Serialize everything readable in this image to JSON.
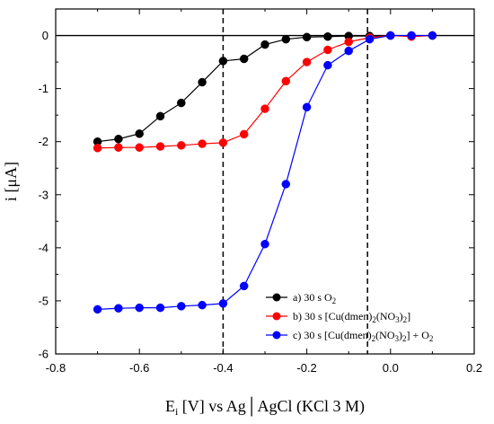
{
  "chart_data": {
    "type": "line",
    "title": "",
    "xlabel": "E_i [V] vs Ag|AgCl (KCl 3 M)",
    "xlabel_parts": {
      "main": "E",
      "sub": "i",
      "rest": " [V] vs Ag│AgCl (KCl 3 M)"
    },
    "ylabel": "i [μA]",
    "xlim": [
      -0.8,
      0.2
    ],
    "ylim": [
      -6,
      0.5
    ],
    "xticks": [
      -0.8,
      -0.6,
      -0.4,
      -0.2,
      0.0,
      0.2
    ],
    "xtick_labels": [
      "-0.8",
      "-0.6",
      "-0.4",
      "-0.2",
      "0.0",
      "0.2"
    ],
    "yticks": [
      0,
      -1,
      -2,
      -3,
      -4,
      -5,
      -6
    ],
    "ytick_labels": [
      "0",
      "-1",
      "-2",
      "-3",
      "-4",
      "-5",
      "-6"
    ],
    "grid": false,
    "legend_position": "bottom-right",
    "reference_lines": {
      "horizontal_y": 0,
      "vertical_dashed_x": [
        -0.4,
        -0.055
      ]
    },
    "series": [
      {
        "name": "a) 30 s  O2",
        "legend": {
          "prefix": "a) 30 s  O",
          "parts": [
            [
              "sub",
              "2"
            ]
          ]
        },
        "color": "#000000",
        "x": [
          -0.7,
          -0.65,
          -0.6,
          -0.55,
          -0.5,
          -0.45,
          -0.4,
          -0.35,
          -0.3,
          -0.25,
          -0.2,
          -0.15,
          -0.1,
          -0.05,
          0.0,
          0.05,
          0.1
        ],
        "y": [
          -2.0,
          -1.95,
          -1.85,
          -1.52,
          -1.27,
          -0.88,
          -0.48,
          -0.44,
          -0.17,
          -0.07,
          -0.03,
          -0.02,
          -0.01,
          -0.01,
          0.0,
          0.0,
          0.0
        ]
      },
      {
        "name": "b) 30 s [Cu(dmen)2(NO3)2]",
        "legend": {
          "prefix": "b) 30 s [Cu(dmen)",
          "parts": [
            [
              "sub",
              "2"
            ],
            [
              "txt",
              "(NO"
            ],
            [
              "sub",
              "3"
            ],
            [
              "txt",
              ")"
            ],
            [
              "sub",
              "2"
            ],
            [
              "txt",
              "]"
            ]
          ]
        },
        "color": "#ff0000",
        "x": [
          -0.7,
          -0.65,
          -0.6,
          -0.55,
          -0.5,
          -0.45,
          -0.4,
          -0.35,
          -0.3,
          -0.25,
          -0.2,
          -0.15,
          -0.1,
          -0.05,
          0.0,
          0.05,
          0.1
        ],
        "y": [
          -2.12,
          -2.11,
          -2.11,
          -2.09,
          -2.07,
          -2.04,
          -2.02,
          -1.86,
          -1.38,
          -0.86,
          -0.5,
          -0.27,
          -0.12,
          -0.04,
          0.0,
          -0.02,
          0.0
        ]
      },
      {
        "name": "c) 30 s [Cu(dmen)2(NO3)2] + O2",
        "legend": {
          "prefix": "c) 30 s [Cu(dmen)",
          "parts": [
            [
              "sub",
              "2"
            ],
            [
              "txt",
              "(NO"
            ],
            [
              "sub",
              "3"
            ],
            [
              "txt",
              ")"
            ],
            [
              "sub",
              "2"
            ],
            [
              "txt",
              "] + O"
            ],
            [
              "sub",
              "2"
            ]
          ]
        },
        "color": "#0000ff",
        "x": [
          -0.7,
          -0.65,
          -0.6,
          -0.55,
          -0.5,
          -0.45,
          -0.4,
          -0.35,
          -0.3,
          -0.25,
          -0.2,
          -0.15,
          -0.1,
          -0.05,
          0.0,
          0.05,
          0.1
        ],
        "y": [
          -5.16,
          -5.14,
          -5.13,
          -5.13,
          -5.1,
          -5.08,
          -5.05,
          -4.72,
          -3.93,
          -2.8,
          -1.35,
          -0.56,
          -0.29,
          -0.07,
          0.0,
          0.0,
          0.0
        ]
      }
    ]
  }
}
